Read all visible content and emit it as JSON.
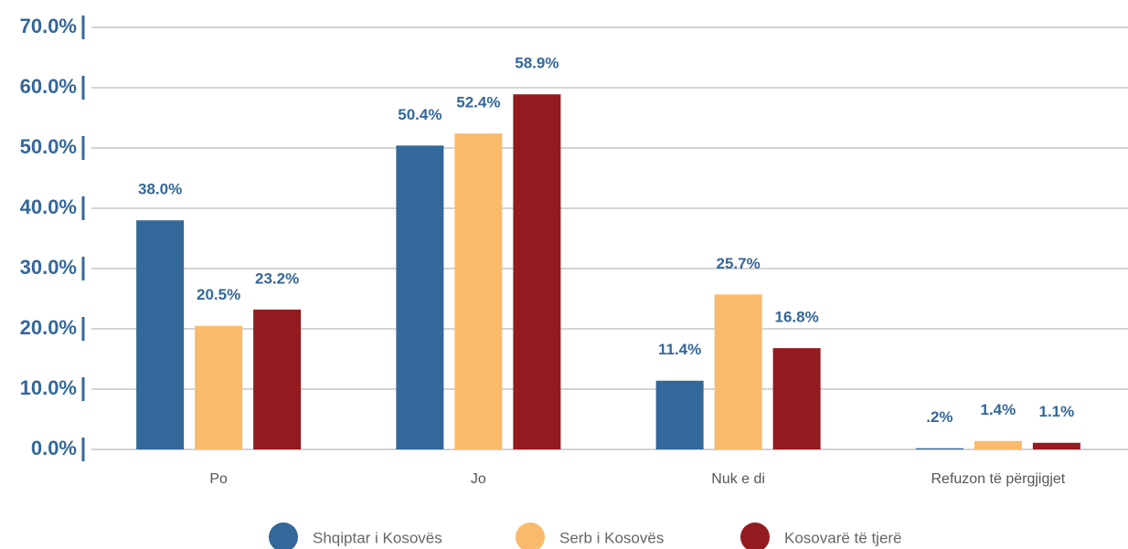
{
  "chart_data": {
    "type": "bar",
    "categories": [
      "Po",
      "Jo",
      "Nuk e di",
      "Refuzon të përgjigjet"
    ],
    "series": [
      {
        "name": "Shqiptar i Kosovës",
        "color": "#34679a",
        "values": [
          38.0,
          50.4,
          11.4,
          0.2
        ],
        "value_labels": [
          "38.0%",
          "50.4%",
          "11.4%",
          ".2%"
        ]
      },
      {
        "name": "Serb i Kosovës",
        "color": "#f9bb6b",
        "values": [
          20.5,
          52.4,
          25.7,
          1.4
        ],
        "value_labels": [
          "20.5%",
          "52.4%",
          "25.7%",
          "1.4%"
        ]
      },
      {
        "name": "Kosovarë të tjerë",
        "color": "#931a1e",
        "values": [
          23.2,
          58.9,
          16.8,
          1.1
        ],
        "value_labels": [
          "23.2%",
          "58.9%",
          "16.8%",
          "1.1%"
        ]
      }
    ],
    "ylim": [
      0,
      70
    ],
    "yticks": [
      {
        "value": 0,
        "label": "0.0%"
      },
      {
        "value": 10,
        "label": "10.0%"
      },
      {
        "value": 20,
        "label": "20.0%"
      },
      {
        "value": 30,
        "label": "30.0%"
      },
      {
        "value": 40,
        "label": "40.0%"
      },
      {
        "value": 50,
        "label": "50.0%"
      },
      {
        "value": 60,
        "label": "60.0%"
      },
      {
        "value": 70,
        "label": "70.0%"
      }
    ],
    "grid": true,
    "legend": "bottom"
  }
}
